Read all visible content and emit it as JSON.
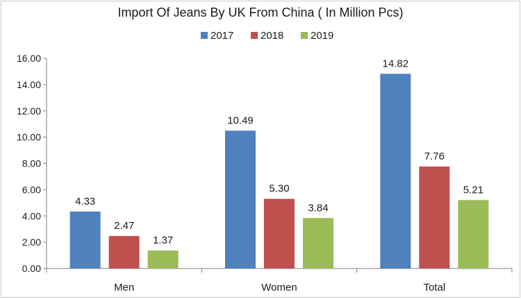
{
  "chart_data": {
    "type": "bar",
    "title": "Import Of Jeans By UK From China ( In Million Pcs)",
    "categories": [
      "Men",
      "Women",
      "Total"
    ],
    "series": [
      {
        "name": "2017",
        "color": "#4F81BD",
        "values": [
          4.33,
          10.49,
          14.82
        ],
        "labels": [
          "4.33",
          "10.49",
          "14.82"
        ]
      },
      {
        "name": "2018",
        "color": "#C0504D",
        "values": [
          2.47,
          5.3,
          7.76
        ],
        "labels": [
          "2.47",
          "5.30",
          "7.76"
        ]
      },
      {
        "name": "2019",
        "color": "#9BBB59",
        "values": [
          1.37,
          3.84,
          5.21
        ],
        "labels": [
          "1.37",
          "3.84",
          "5.21"
        ]
      }
    ],
    "ylim": [
      0,
      16
    ],
    "yticks": [
      "0.00",
      "2.00",
      "4.00",
      "6.00",
      "8.00",
      "10.00",
      "12.00",
      "14.00",
      "16.00"
    ],
    "xlabel": "",
    "ylabel": "",
    "legend_position": "top-center",
    "grid": false
  }
}
